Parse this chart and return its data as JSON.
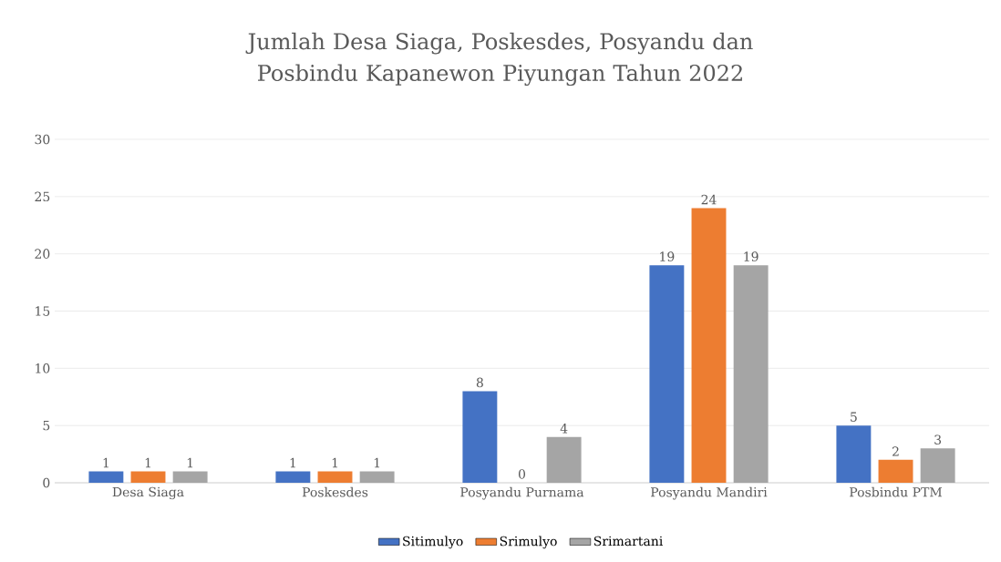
{
  "chart_data": {
    "type": "bar",
    "title": "Jumlah Desa Siaga, Poskesdes, Posyandu dan Posbindu Kapanewon Piyungan Tahun 2022",
    "categories": [
      "Desa Siaga",
      "Poskesdes",
      "Posyandu Purnama",
      "Posyandu Mandiri",
      "Posbindu PTM"
    ],
    "series": [
      {
        "name": "Sitimulyo",
        "color": "#4472c4",
        "values": [
          1,
          1,
          8,
          19,
          5
        ]
      },
      {
        "name": "Srimulyo",
        "color": "#ed7d31",
        "values": [
          1,
          1,
          0,
          24,
          2
        ]
      },
      {
        "name": "Srimartani",
        "color": "#a5a5a5",
        "values": [
          1,
          1,
          4,
          19,
          3
        ]
      }
    ],
    "ylim": [
      0,
      30
    ],
    "yticks": [
      0,
      5,
      10,
      15,
      20,
      25,
      30
    ],
    "grid": "y",
    "legend": "bottom",
    "data_labels": true
  }
}
